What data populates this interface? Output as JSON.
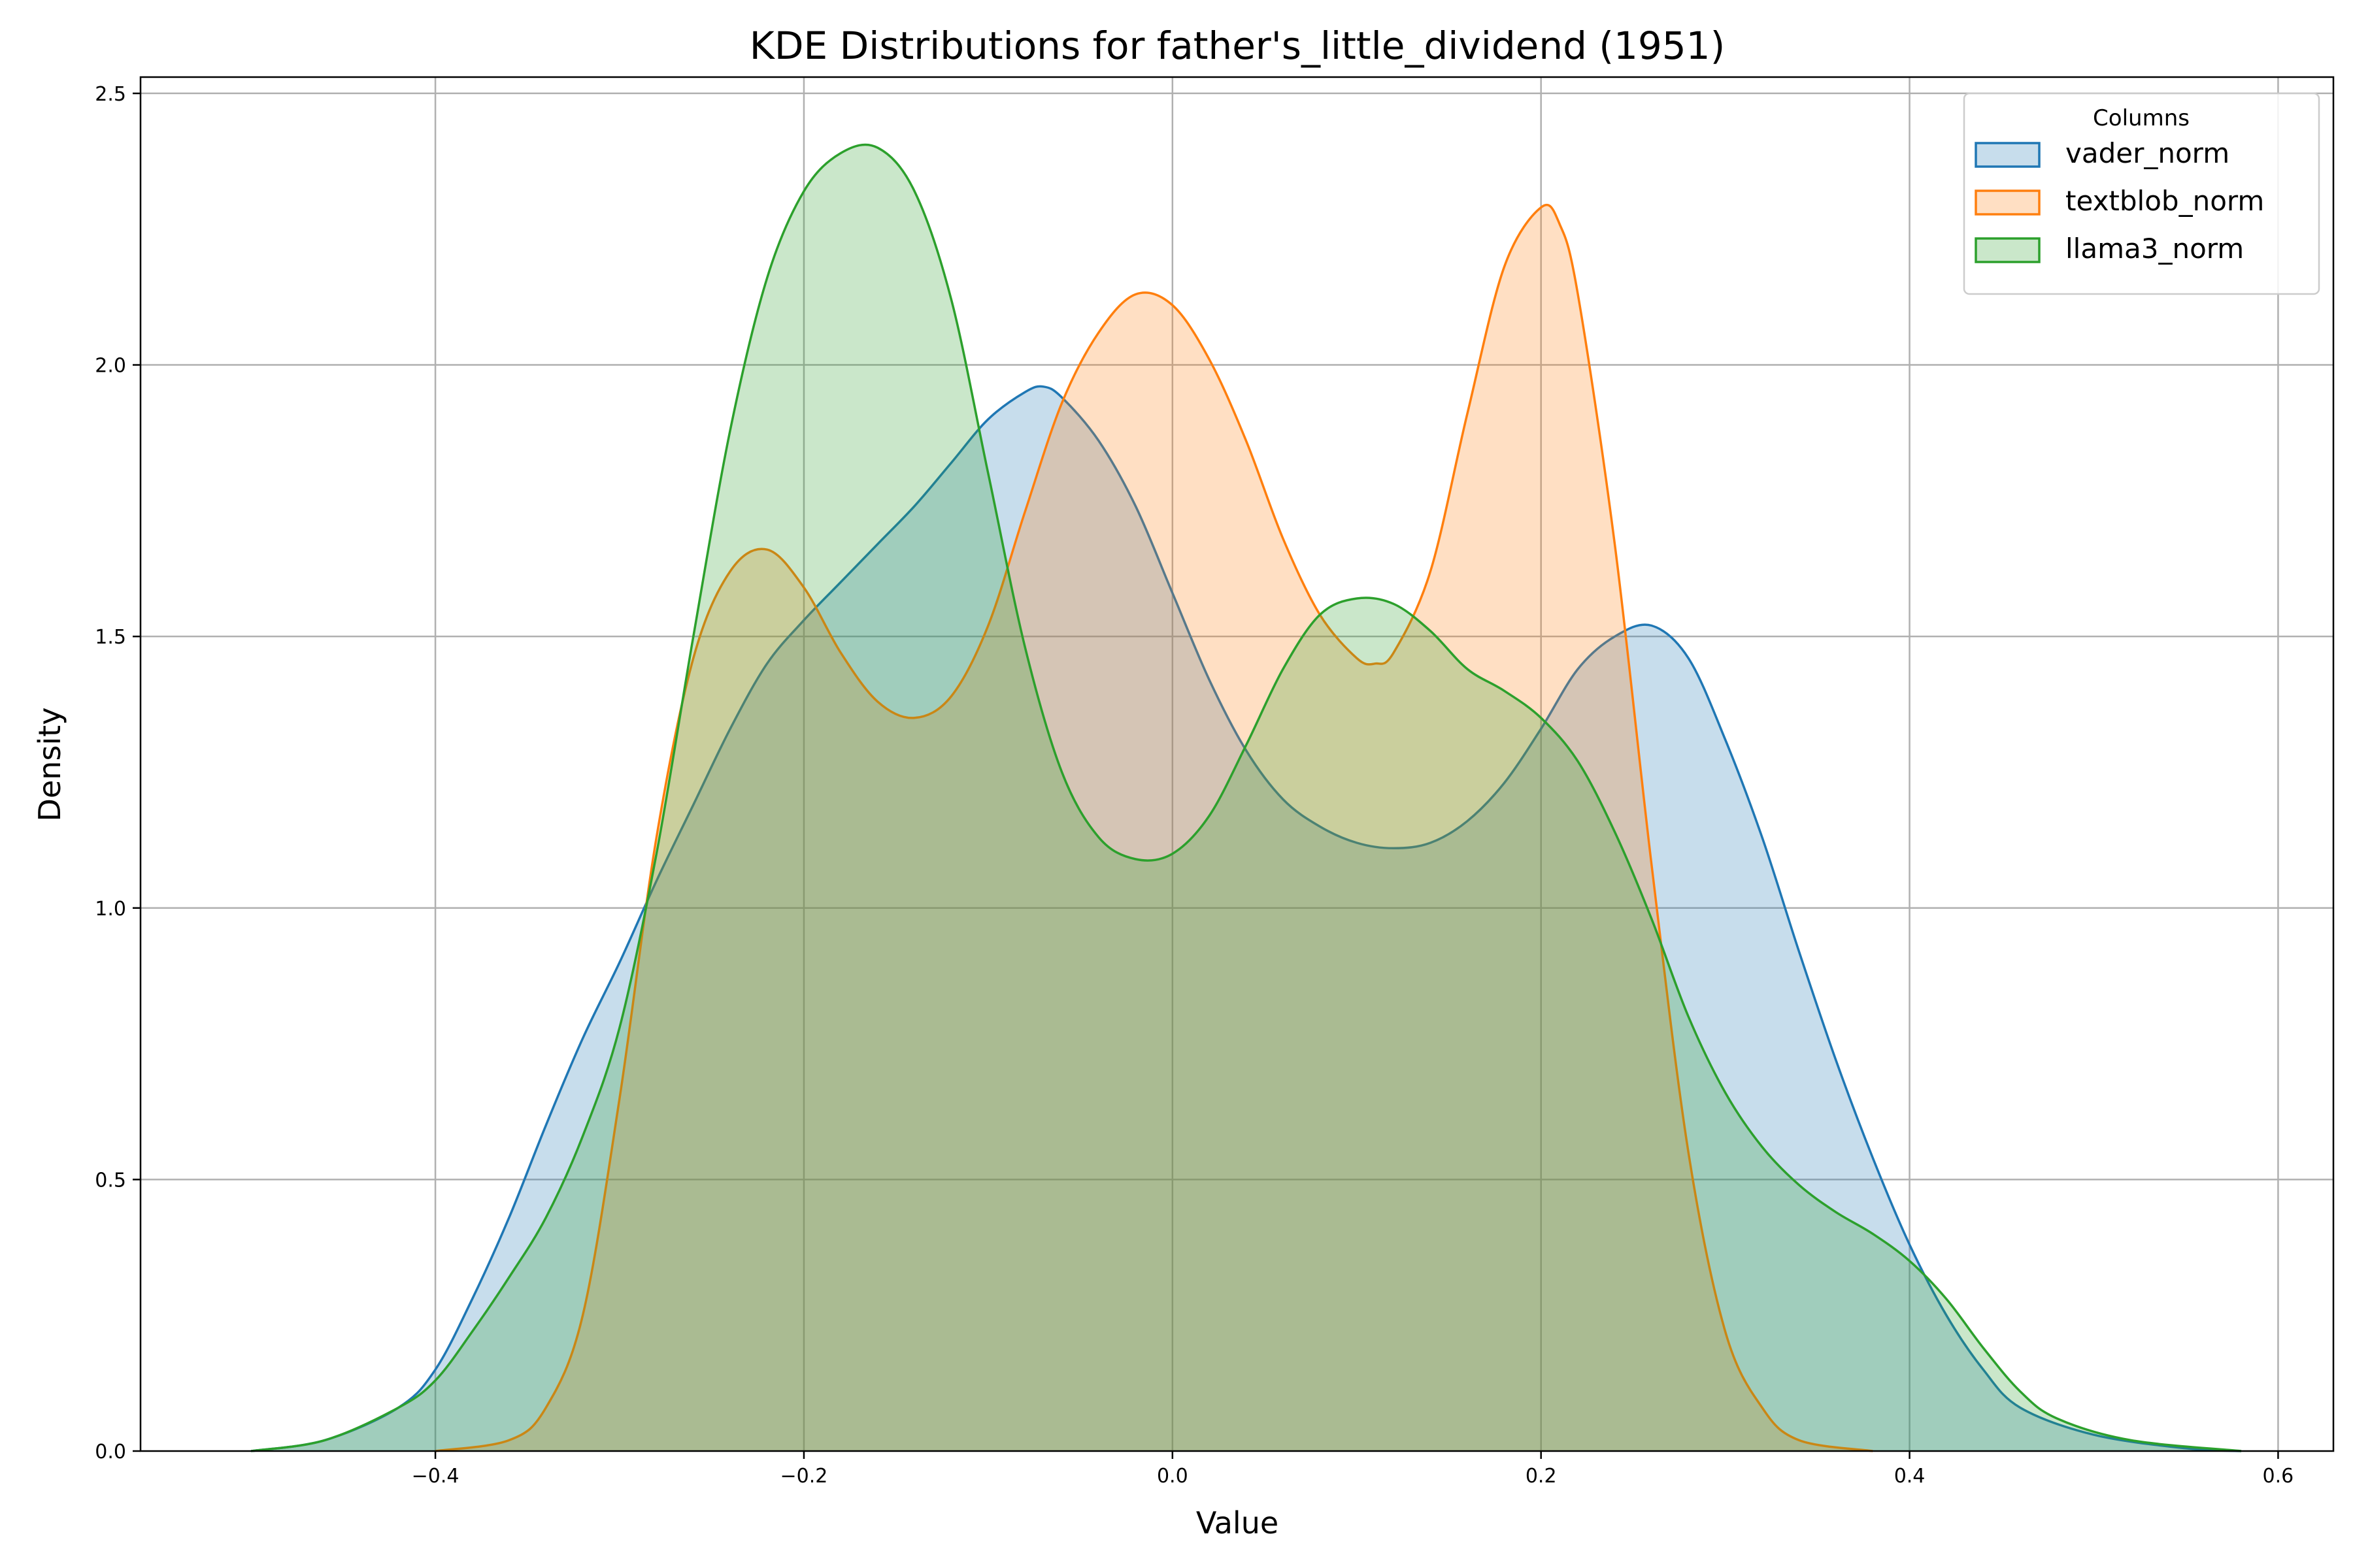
{
  "chart_data": {
    "type": "area",
    "title": "KDE Distributions for father's_little_dividend (1951)",
    "xlabel": "Value",
    "ylabel": "Density",
    "xlim": [
      -0.56,
      0.63
    ],
    "ylim": [
      0,
      2.53
    ],
    "xticks": [
      -0.4,
      -0.2,
      0.0,
      0.2,
      0.4,
      0.6
    ],
    "xtick_labels": [
      "−0.4",
      "−0.2",
      "0.0",
      "0.2",
      "0.4",
      "0.6"
    ],
    "yticks": [
      0.0,
      0.5,
      1.0,
      1.5,
      2.0,
      2.5
    ],
    "ytick_labels": [
      "0.0",
      "0.5",
      "1.0",
      "1.5",
      "2.0",
      "2.5"
    ],
    "grid": true,
    "legend": {
      "title": "Columns",
      "position": "top-right"
    },
    "series": [
      {
        "name": "vader_norm",
        "color": "#1f77b4",
        "points": [
          [
            -0.5,
            0
          ],
          [
            -0.46,
            0.02
          ],
          [
            -0.42,
            0.08
          ],
          [
            -0.4,
            0.15
          ],
          [
            -0.38,
            0.28
          ],
          [
            -0.36,
            0.43
          ],
          [
            -0.34,
            0.6
          ],
          [
            -0.32,
            0.76
          ],
          [
            -0.3,
            0.9
          ],
          [
            -0.28,
            1.05
          ],
          [
            -0.26,
            1.19
          ],
          [
            -0.24,
            1.33
          ],
          [
            -0.22,
            1.45
          ],
          [
            -0.2,
            1.53
          ],
          [
            -0.18,
            1.6
          ],
          [
            -0.16,
            1.67
          ],
          [
            -0.14,
            1.74
          ],
          [
            -0.12,
            1.82
          ],
          [
            -0.1,
            1.9
          ],
          [
            -0.08,
            1.95
          ],
          [
            -0.07,
            1.96
          ],
          [
            -0.06,
            1.94
          ],
          [
            -0.04,
            1.86
          ],
          [
            -0.02,
            1.74
          ],
          [
            0.0,
            1.58
          ],
          [
            0.02,
            1.42
          ],
          [
            0.04,
            1.29
          ],
          [
            0.06,
            1.2
          ],
          [
            0.08,
            1.15
          ],
          [
            0.1,
            1.12
          ],
          [
            0.12,
            1.11
          ],
          [
            0.14,
            1.12
          ],
          [
            0.16,
            1.16
          ],
          [
            0.18,
            1.23
          ],
          [
            0.2,
            1.33
          ],
          [
            0.22,
            1.44
          ],
          [
            0.24,
            1.5
          ],
          [
            0.26,
            1.52
          ],
          [
            0.28,
            1.46
          ],
          [
            0.3,
            1.31
          ],
          [
            0.32,
            1.13
          ],
          [
            0.34,
            0.92
          ],
          [
            0.36,
            0.72
          ],
          [
            0.38,
            0.54
          ],
          [
            0.4,
            0.38
          ],
          [
            0.42,
            0.25
          ],
          [
            0.44,
            0.15
          ],
          [
            0.46,
            0.08
          ],
          [
            0.5,
            0.03
          ],
          [
            0.55,
            0.005
          ],
          [
            0.58,
            0
          ]
        ]
      },
      {
        "name": "textblob_norm",
        "color": "#ff7f0e",
        "points": [
          [
            -0.4,
            0
          ],
          [
            -0.36,
            0.02
          ],
          [
            -0.34,
            0.08
          ],
          [
            -0.32,
            0.25
          ],
          [
            -0.3,
            0.65
          ],
          [
            -0.28,
            1.13
          ],
          [
            -0.26,
            1.46
          ],
          [
            -0.24,
            1.62
          ],
          [
            -0.22,
            1.66
          ],
          [
            -0.2,
            1.59
          ],
          [
            -0.18,
            1.47
          ],
          [
            -0.16,
            1.38
          ],
          [
            -0.14,
            1.35
          ],
          [
            -0.12,
            1.39
          ],
          [
            -0.1,
            1.52
          ],
          [
            -0.08,
            1.73
          ],
          [
            -0.06,
            1.93
          ],
          [
            -0.04,
            2.06
          ],
          [
            -0.02,
            2.13
          ],
          [
            0.0,
            2.11
          ],
          [
            0.02,
            2.01
          ],
          [
            0.04,
            1.86
          ],
          [
            0.06,
            1.68
          ],
          [
            0.08,
            1.54
          ],
          [
            0.1,
            1.46
          ],
          [
            0.11,
            1.45
          ],
          [
            0.12,
            1.47
          ],
          [
            0.14,
            1.62
          ],
          [
            0.16,
            1.91
          ],
          [
            0.18,
            2.18
          ],
          [
            0.2,
            2.29
          ],
          [
            0.21,
            2.26
          ],
          [
            0.22,
            2.13
          ],
          [
            0.24,
            1.67
          ],
          [
            0.26,
            1.08
          ],
          [
            0.28,
            0.55
          ],
          [
            0.3,
            0.22
          ],
          [
            0.32,
            0.08
          ],
          [
            0.34,
            0.02
          ],
          [
            0.38,
            0
          ]
        ]
      },
      {
        "name": "llama3_norm",
        "color": "#2ca02c",
        "points": [
          [
            -0.5,
            0
          ],
          [
            -0.46,
            0.02
          ],
          [
            -0.42,
            0.08
          ],
          [
            -0.4,
            0.13
          ],
          [
            -0.38,
            0.22
          ],
          [
            -0.36,
            0.32
          ],
          [
            -0.34,
            0.43
          ],
          [
            -0.32,
            0.58
          ],
          [
            -0.3,
            0.78
          ],
          [
            -0.28,
            1.1
          ],
          [
            -0.26,
            1.5
          ],
          [
            -0.24,
            1.88
          ],
          [
            -0.22,
            2.16
          ],
          [
            -0.2,
            2.32
          ],
          [
            -0.18,
            2.39
          ],
          [
            -0.16,
            2.4
          ],
          [
            -0.14,
            2.32
          ],
          [
            -0.12,
            2.12
          ],
          [
            -0.1,
            1.8
          ],
          [
            -0.08,
            1.48
          ],
          [
            -0.06,
            1.25
          ],
          [
            -0.04,
            1.13
          ],
          [
            -0.02,
            1.09
          ],
          [
            0.0,
            1.1
          ],
          [
            0.02,
            1.17
          ],
          [
            0.04,
            1.3
          ],
          [
            0.06,
            1.44
          ],
          [
            0.08,
            1.54
          ],
          [
            0.1,
            1.57
          ],
          [
            0.12,
            1.56
          ],
          [
            0.14,
            1.51
          ],
          [
            0.16,
            1.44
          ],
          [
            0.18,
            1.4
          ],
          [
            0.2,
            1.35
          ],
          [
            0.22,
            1.27
          ],
          [
            0.24,
            1.14
          ],
          [
            0.26,
            0.98
          ],
          [
            0.28,
            0.8
          ],
          [
            0.3,
            0.66
          ],
          [
            0.32,
            0.56
          ],
          [
            0.34,
            0.49
          ],
          [
            0.36,
            0.44
          ],
          [
            0.38,
            0.4
          ],
          [
            0.4,
            0.35
          ],
          [
            0.42,
            0.28
          ],
          [
            0.44,
            0.19
          ],
          [
            0.46,
            0.11
          ],
          [
            0.48,
            0.06
          ],
          [
            0.52,
            0.02
          ],
          [
            0.58,
            0
          ]
        ]
      }
    ]
  }
}
